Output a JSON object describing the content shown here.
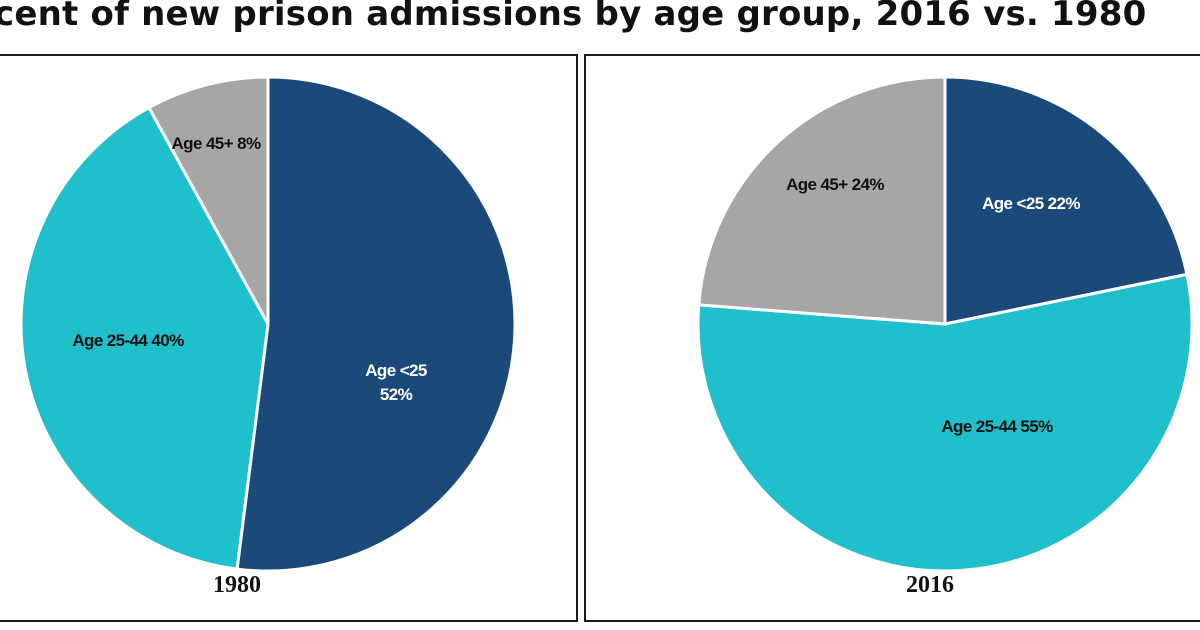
{
  "title": "cent of new prison admissions by age group, 2016 vs. 1980",
  "colors": {
    "age_under_25": "#1B4A7A",
    "age_25_44": "#1FBFCB",
    "age_45_plus": "#A6A6A6",
    "label_light": "#ffffff",
    "label_dark": "#111111"
  },
  "chart_data": [
    {
      "type": "pie",
      "caption": "1980",
      "start_angle_deg": 0,
      "direction": "clockwise",
      "slices": [
        {
          "label": "Age <25",
          "value": 52,
          "value_text": "52%",
          "color": "#1B4A7A",
          "label_color": "#ffffff"
        },
        {
          "label": "Age 25-44",
          "value": 40,
          "value_text": "40%",
          "color": "#1FBFCB",
          "label_color": "#111111"
        },
        {
          "label": "Age 45+",
          "value": 8,
          "value_text": "8%",
          "color": "#A6A6A6",
          "label_color": "#111111"
        }
      ]
    },
    {
      "type": "pie",
      "caption": "2016",
      "start_angle_deg": 0,
      "direction": "clockwise",
      "slices": [
        {
          "label": "Age <25",
          "value": 22,
          "value_text": "22%",
          "color": "#1B4A7A",
          "label_color": "#ffffff"
        },
        {
          "label": "Age 25-44",
          "value": 55,
          "value_text": "55%",
          "color": "#1FBFCB",
          "label_color": "#111111"
        },
        {
          "label": "Age 45+",
          "value": 24,
          "value_text": "24%",
          "color": "#A6A6A6",
          "label_color": "#111111"
        }
      ]
    }
  ]
}
